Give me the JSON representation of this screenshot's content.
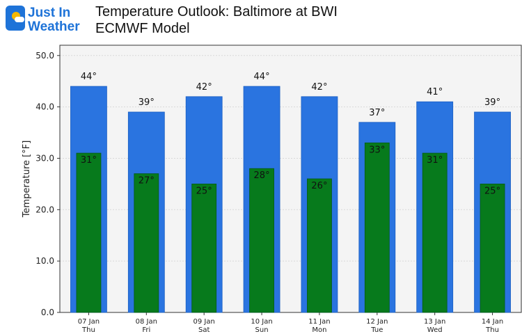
{
  "branding": {
    "logo_line1": "Just In",
    "logo_line2": "Weather"
  },
  "header": {
    "title_line1": "Temperature Outlook: Baltimore at BWI",
    "title_line2": "ECMWF Model"
  },
  "chart_data": {
    "type": "bar",
    "categories": [
      [
        "07 Jan",
        "Thu"
      ],
      [
        "08 Jan",
        "Fri"
      ],
      [
        "09 Jan",
        "Sat"
      ],
      [
        "10 Jan",
        "Sun"
      ],
      [
        "11 Jan",
        "Mon"
      ],
      [
        "12 Jan",
        "Tue"
      ],
      [
        "13 Jan",
        "Wed"
      ],
      [
        "14 Jan",
        "Thu"
      ]
    ],
    "series": [
      {
        "values": [
          44,
          39,
          42,
          44,
          42,
          37,
          41,
          39
        ],
        "color": "#2a74e0"
      },
      {
        "values": [
          31,
          27,
          25,
          28,
          26,
          33,
          31,
          25
        ],
        "color": "#077a1c"
      }
    ],
    "value_suffix": "°",
    "ylabel": "Temperature [°F]",
    "ylim": [
      0,
      52
    ],
    "yticks": [
      0,
      10,
      20,
      30,
      40,
      50
    ],
    "ytick_labels": [
      "0.0",
      "10.0",
      "20.0",
      "30.0",
      "40.0",
      "50.0"
    ],
    "grid": true,
    "overlap": true
  }
}
